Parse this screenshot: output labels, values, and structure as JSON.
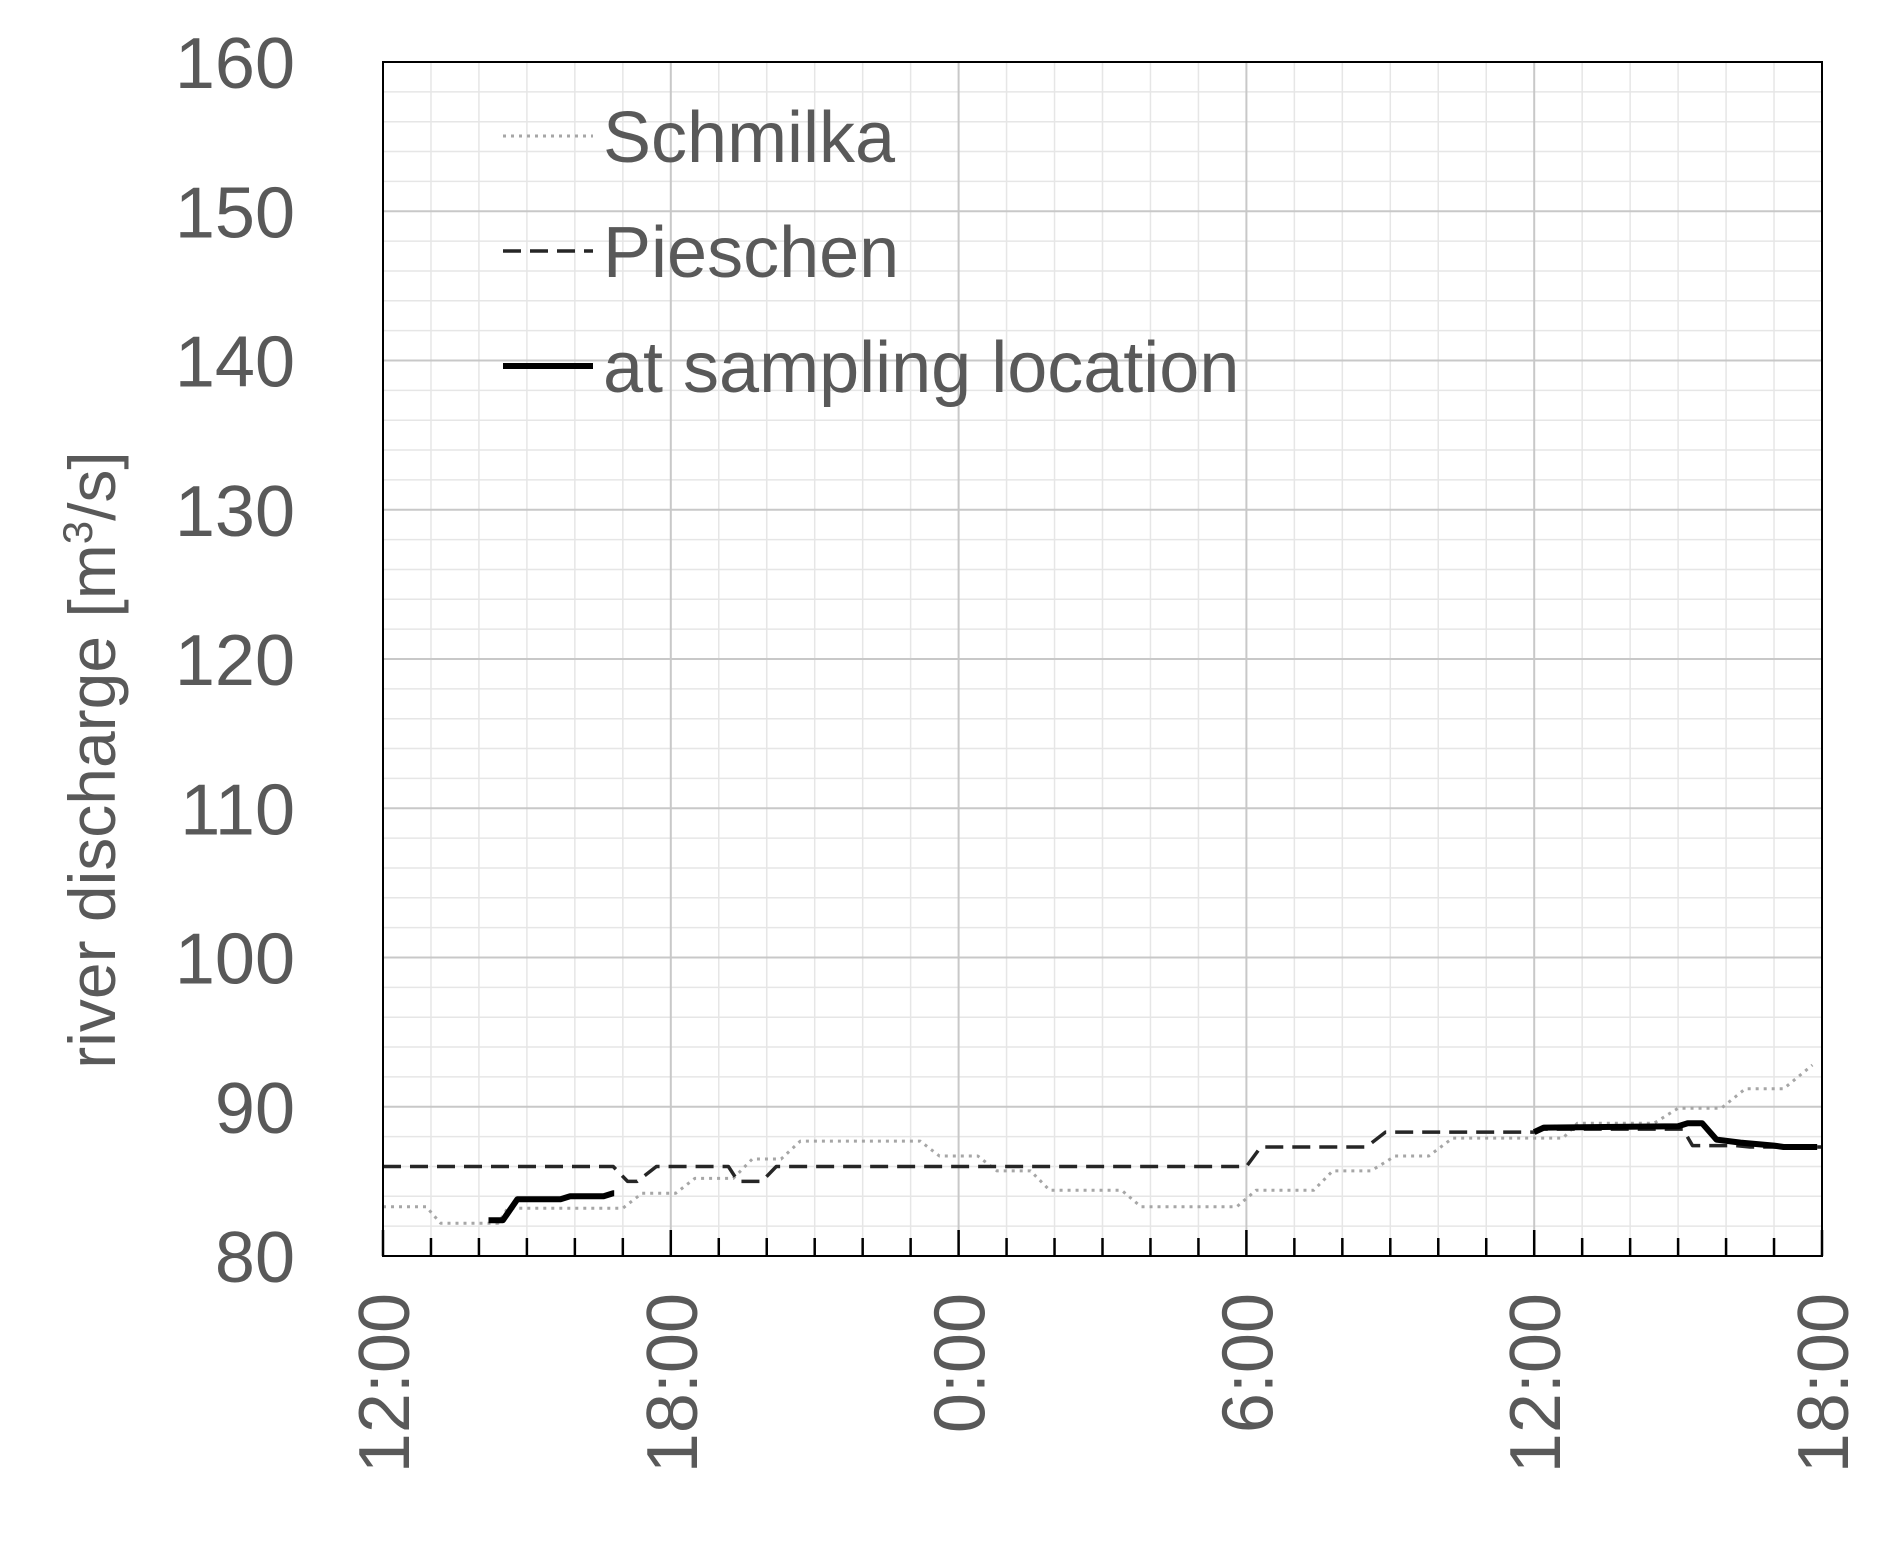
{
  "chart_data": {
    "type": "line",
    "title": "",
    "xlabel": "",
    "ylabel": "river discharge [m³/s]",
    "ylabel_parts": {
      "before": "river discharge [m",
      "sup": "3",
      "after": "/s]"
    },
    "ylim": [
      80,
      160
    ],
    "y_major_step": 10,
    "y_ticks": [
      "80",
      "90",
      "100",
      "110",
      "120",
      "130",
      "140",
      "150",
      "160"
    ],
    "x_ticks": [
      "12:00",
      "18:00",
      "0:00",
      "6:00",
      "12:00",
      "18:00"
    ],
    "xlim_hours": [
      0,
      30
    ],
    "x_start_label": "12:00",
    "grid": true,
    "legend_position": "top-left",
    "series": [
      {
        "name": "Schmilka",
        "style": "dotted",
        "color": "#a6a6a6",
        "points": [
          [
            0,
            83.3
          ],
          [
            0.9,
            83.3
          ],
          [
            1.2,
            82.2
          ],
          [
            2.4,
            82.2
          ],
          [
            2.6,
            83.2
          ],
          [
            5,
            83.2
          ],
          [
            5.4,
            84.2
          ],
          [
            6.1,
            84.2
          ],
          [
            6.5,
            85.2
          ],
          [
            7.3,
            85.2
          ],
          [
            7.7,
            86.5
          ],
          [
            8.3,
            86.5
          ],
          [
            8.7,
            87.7
          ],
          [
            11.2,
            87.7
          ],
          [
            11.6,
            86.7
          ],
          [
            12.4,
            86.7
          ],
          [
            12.8,
            85.7
          ],
          [
            13.5,
            85.7
          ],
          [
            13.9,
            84.4
          ],
          [
            15.4,
            84.4
          ],
          [
            15.8,
            83.3
          ],
          [
            17.8,
            83.3
          ],
          [
            18.2,
            84.4
          ],
          [
            19.4,
            84.4
          ],
          [
            19.8,
            85.7
          ],
          [
            20.6,
            85.7
          ],
          [
            21.1,
            86.7
          ],
          [
            21.8,
            86.7
          ],
          [
            22.3,
            87.9
          ],
          [
            24.6,
            87.9
          ],
          [
            24.9,
            88.9
          ],
          [
            26.5,
            88.9
          ],
          [
            27,
            89.9
          ],
          [
            27.9,
            89.9
          ],
          [
            28.4,
            91.2
          ],
          [
            29.2,
            91.2
          ],
          [
            29.8,
            92.8
          ]
        ]
      },
      {
        "name": "Pieschen",
        "style": "dashed",
        "color": "#262626",
        "points": [
          [
            0,
            86
          ],
          [
            4.8,
            86
          ],
          [
            5.1,
            85
          ],
          [
            5.3,
            85
          ],
          [
            5.7,
            86
          ],
          [
            7.2,
            86
          ],
          [
            7.4,
            85
          ],
          [
            7.9,
            85
          ],
          [
            8.2,
            86
          ],
          [
            18,
            86
          ],
          [
            18.3,
            87.3
          ],
          [
            20.5,
            87.3
          ],
          [
            20.9,
            88.3
          ],
          [
            24,
            88.3
          ],
          [
            24.2,
            88.5
          ],
          [
            27.1,
            88.5
          ],
          [
            27.3,
            87.4
          ],
          [
            28.2,
            87.4
          ],
          [
            28.5,
            87.3
          ],
          [
            30,
            87.3
          ]
        ]
      },
      {
        "name": "at sampling location",
        "style": "solid",
        "color": "#000000",
        "points": [
          [
            2.2,
            82.4
          ],
          [
            2.5,
            82.4
          ],
          [
            2.8,
            83.8
          ],
          [
            3.7,
            83.8
          ],
          [
            3.9,
            84
          ],
          [
            4.6,
            84
          ],
          [
            4.8,
            84.2
          ],
          [
            4.82,
            84.2
          ]
        ]
      },
      {
        "name": "at sampling location",
        "style": "solid",
        "color": "#000000",
        "points": [
          [
            24,
            88.3
          ],
          [
            24.2,
            88.6
          ],
          [
            27,
            88.7
          ],
          [
            27.2,
            88.9
          ],
          [
            27.5,
            88.9
          ],
          [
            27.8,
            87.8
          ],
          [
            28.3,
            87.6
          ],
          [
            29,
            87.4
          ],
          [
            29.2,
            87.3
          ],
          [
            29.9,
            87.3
          ]
        ]
      }
    ]
  }
}
